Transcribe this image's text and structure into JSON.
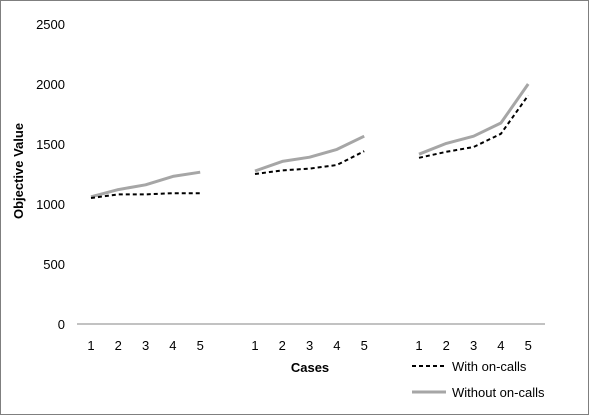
{
  "chart_data": {
    "type": "line",
    "title": "",
    "xlabel": "Cases",
    "ylabel": "Objective Value",
    "ylim": [
      0,
      2500
    ],
    "y_ticks": [
      0,
      500,
      1000,
      1500,
      2000,
      2500
    ],
    "grid": false,
    "legend_position": "bottom-right",
    "groups": [
      {
        "categories": [
          "1",
          "2",
          "3",
          "4",
          "5"
        ],
        "series": [
          {
            "name": "With on-calls",
            "values": [
              1050,
              1080,
              1080,
              1090,
              1090
            ]
          },
          {
            "name": "Without on-calls",
            "values": [
              1060,
              1120,
              1160,
              1230,
              1265
            ]
          }
        ]
      },
      {
        "categories": [
          "1",
          "2",
          "3",
          "4",
          "5"
        ],
        "series": [
          {
            "name": "With on-calls",
            "values": [
              1250,
              1280,
              1295,
              1325,
              1440
            ]
          },
          {
            "name": "Without on-calls",
            "values": [
              1275,
              1355,
              1390,
              1455,
              1565
            ]
          }
        ]
      },
      {
        "categories": [
          "1",
          "2",
          "3",
          "4",
          "5"
        ],
        "series": [
          {
            "name": "With on-calls",
            "values": [
              1385,
              1435,
              1475,
              1585,
              1905
            ]
          },
          {
            "name": "Without on-calls",
            "values": [
              1415,
              1505,
              1565,
              1675,
              2000
            ]
          }
        ]
      }
    ],
    "series_styles": [
      {
        "name": "With on-calls",
        "color": "#000000",
        "dashed": true
      },
      {
        "name": "Without on-calls",
        "color": "#a6a6a6",
        "dashed": false
      }
    ]
  }
}
